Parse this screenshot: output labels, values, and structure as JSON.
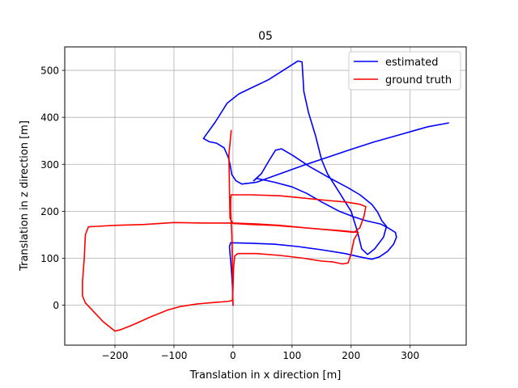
{
  "chart_data": {
    "type": "line",
    "title": "05",
    "xlabel": "Translation in x direction [m]",
    "ylabel": "Translation in z direction [m]",
    "xlim": [
      -285,
      395
    ],
    "ylim": [
      -85,
      550
    ],
    "xticks": [
      -200,
      -100,
      0,
      100,
      200,
      300
    ],
    "yticks": [
      0,
      100,
      200,
      300,
      400,
      500
    ],
    "xtick_labels": [
      "−200",
      "−100",
      "0",
      "100",
      "200",
      "300"
    ],
    "ytick_labels": [
      "0",
      "100",
      "200",
      "300",
      "400",
      "500"
    ],
    "grid": true,
    "legend": {
      "position": "top-right",
      "entries": [
        "estimated",
        "ground truth"
      ]
    },
    "series": [
      {
        "name": "estimated",
        "color": "#0000ff",
        "points": [
          [
            0,
            0
          ],
          [
            -1,
            40
          ],
          [
            -3,
            80
          ],
          [
            -5,
            110
          ],
          [
            -6,
            125
          ],
          [
            -4,
            133
          ],
          [
            30,
            132
          ],
          [
            70,
            130
          ],
          [
            110,
            125
          ],
          [
            150,
            118
          ],
          [
            190,
            110
          ],
          [
            215,
            103
          ],
          [
            235,
            98
          ],
          [
            248,
            103
          ],
          [
            262,
            115
          ],
          [
            272,
            130
          ],
          [
            277,
            145
          ],
          [
            275,
            155
          ],
          [
            262,
            165
          ],
          [
            250,
            173
          ],
          [
            225,
            180
          ],
          [
            205,
            188
          ],
          [
            180,
            200
          ],
          [
            150,
            220
          ],
          [
            125,
            238
          ],
          [
            100,
            252
          ],
          [
            70,
            262
          ],
          [
            40,
            270
          ],
          [
            35,
            265
          ],
          [
            48,
            280
          ],
          [
            62,
            310
          ],
          [
            72,
            330
          ],
          [
            82,
            333
          ],
          [
            100,
            320
          ],
          [
            130,
            295
          ],
          [
            165,
            270
          ],
          [
            195,
            250
          ],
          [
            215,
            235
          ],
          [
            235,
            215
          ],
          [
            245,
            198
          ],
          [
            252,
            180
          ],
          [
            260,
            168
          ],
          [
            255,
            145
          ],
          [
            240,
            120
          ],
          [
            228,
            108
          ],
          [
            218,
            120
          ],
          [
            210,
            160
          ],
          [
            200,
            200
          ],
          [
            180,
            240
          ],
          [
            160,
            280
          ],
          [
            150,
            310
          ],
          [
            140,
            360
          ],
          [
            128,
            410
          ],
          [
            120,
            455
          ],
          [
            118,
            495
          ],
          [
            117,
            518
          ],
          [
            110,
            520
          ],
          [
            85,
            500
          ],
          [
            60,
            480
          ],
          [
            35,
            465
          ],
          [
            10,
            450
          ],
          [
            -10,
            430
          ],
          [
            -30,
            390
          ],
          [
            -50,
            355
          ],
          [
            -40,
            348
          ],
          [
            -28,
            345
          ],
          [
            -15,
            335
          ],
          [
            -8,
            315
          ],
          [
            -5,
            300
          ],
          [
            -2,
            278
          ],
          [
            5,
            265
          ],
          [
            15,
            258
          ],
          [
            40,
            262
          ],
          [
            80,
            280
          ],
          [
            120,
            298
          ],
          [
            160,
            315
          ],
          [
            200,
            332
          ],
          [
            240,
            348
          ],
          [
            285,
            364
          ],
          [
            330,
            380
          ],
          [
            365,
            388
          ]
        ]
      },
      {
        "name": "ground truth",
        "color": "#ff0000",
        "points": [
          [
            0,
            0
          ],
          [
            -1,
            80
          ],
          [
            -2,
            150
          ],
          [
            -3,
            175
          ],
          [
            -4,
            200
          ],
          [
            -4,
            225
          ],
          [
            -3,
            235
          ],
          [
            30,
            235
          ],
          [
            80,
            233
          ],
          [
            120,
            228
          ],
          [
            160,
            223
          ],
          [
            190,
            220
          ],
          [
            215,
            215
          ],
          [
            225,
            210
          ],
          [
            222,
            190
          ],
          [
            215,
            165
          ],
          [
            205,
            155
          ],
          [
            165,
            160
          ],
          [
            120,
            165
          ],
          [
            80,
            170
          ],
          [
            40,
            173
          ],
          [
            0,
            175
          ],
          [
            -50,
            175
          ],
          [
            -100,
            176
          ],
          [
            -150,
            172
          ],
          [
            -200,
            170
          ],
          [
            -230,
            168
          ],
          [
            -245,
            167
          ],
          [
            -250,
            150
          ],
          [
            -252,
            100
          ],
          [
            -255,
            50
          ],
          [
            -255,
            20
          ],
          [
            -250,
            5
          ],
          [
            -235,
            -15
          ],
          [
            -220,
            -35
          ],
          [
            -200,
            -55
          ],
          [
            -190,
            -52
          ],
          [
            -170,
            -42
          ],
          [
            -140,
            -25
          ],
          [
            -110,
            -10
          ],
          [
            -90,
            -3
          ],
          [
            -60,
            3
          ],
          [
            -30,
            6
          ],
          [
            -10,
            8
          ],
          [
            -1,
            10
          ],
          [
            0,
            35
          ],
          [
            1,
            80
          ],
          [
            3,
            105
          ],
          [
            8,
            110
          ],
          [
            40,
            110
          ],
          [
            80,
            106
          ],
          [
            120,
            100
          ],
          [
            150,
            94
          ],
          [
            170,
            92
          ],
          [
            185,
            88
          ],
          [
            195,
            90
          ],
          [
            200,
            110
          ],
          [
            205,
            140
          ],
          [
            212,
            155
          ],
          [
            190,
            158
          ],
          [
            150,
            162
          ],
          [
            110,
            166
          ],
          [
            70,
            170
          ],
          [
            30,
            172
          ],
          [
            0,
            174
          ],
          [
            -5,
            185
          ],
          [
            -6,
            250
          ],
          [
            -7,
            320
          ],
          [
            -5,
            345
          ],
          [
            -3,
            372
          ]
        ]
      }
    ]
  }
}
